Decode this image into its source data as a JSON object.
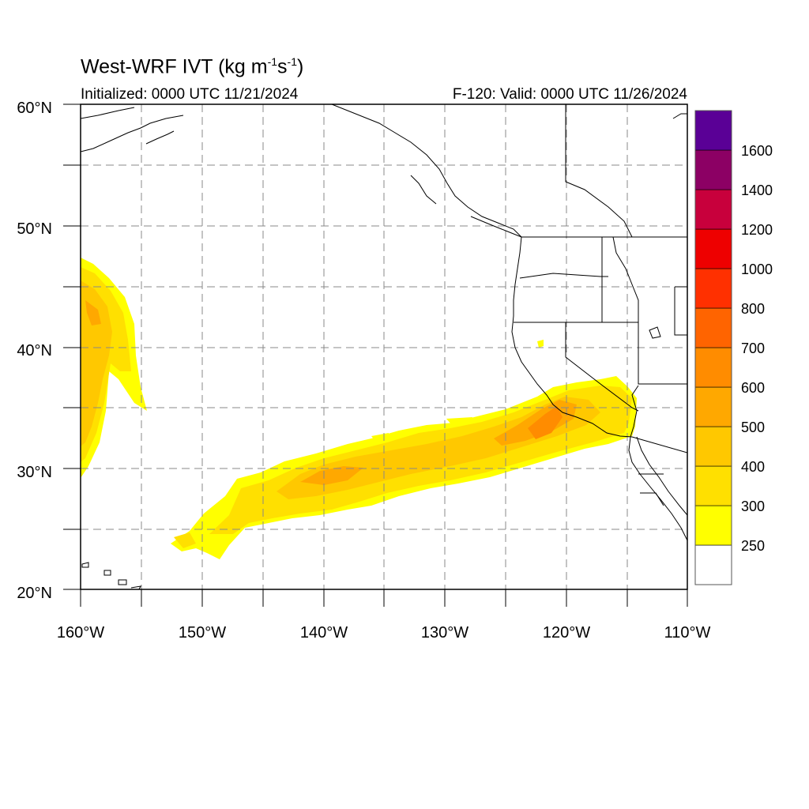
{
  "header": {
    "title_main": "West-WRF IVT (kg m",
    "title_exp1": "-1",
    "title_mid": "s",
    "title_exp2": "-1",
    "title_end": ")",
    "initialized": "Initialized: 0000 UTC 11/21/2024",
    "valid": "F-120: Valid: 0000 UTC 11/26/2024"
  },
  "map": {
    "lon_range": [
      -160,
      -110
    ],
    "lat_range": [
      20,
      60
    ],
    "lon_ticks": [
      "160°W",
      "150°W",
      "140°W",
      "130°W",
      "120°W",
      "110°W"
    ],
    "lat_ticks": [
      "20°N",
      "30°N",
      "40°N",
      "50°N",
      "60°N"
    ],
    "gridlines": "dashed gray every 5°",
    "boundaries": [
      "coastlines",
      "US state borders",
      "Mexico states"
    ]
  },
  "colorbar": {
    "levels": [
      "250",
      "300",
      "400",
      "500",
      "600",
      "700",
      "800",
      "1000",
      "1200",
      "1400",
      "1600"
    ],
    "colors": [
      "#ffffff",
      "#ffff00",
      "#ffe000",
      "#ffc800",
      "#ffa800",
      "#ff8c00",
      "#ff6400",
      "#ff3000",
      "#ee0000",
      "#c8003c",
      "#8c0064",
      "#5a0096"
    ]
  },
  "colors": {
    "ivt_250": "#ffff00",
    "ivt_300": "#ffe000",
    "ivt_400": "#ffc800",
    "ivt_500": "#ffa800",
    "ivt_600": "#ff8c00",
    "grid": "#888888",
    "coast": "#000000"
  }
}
